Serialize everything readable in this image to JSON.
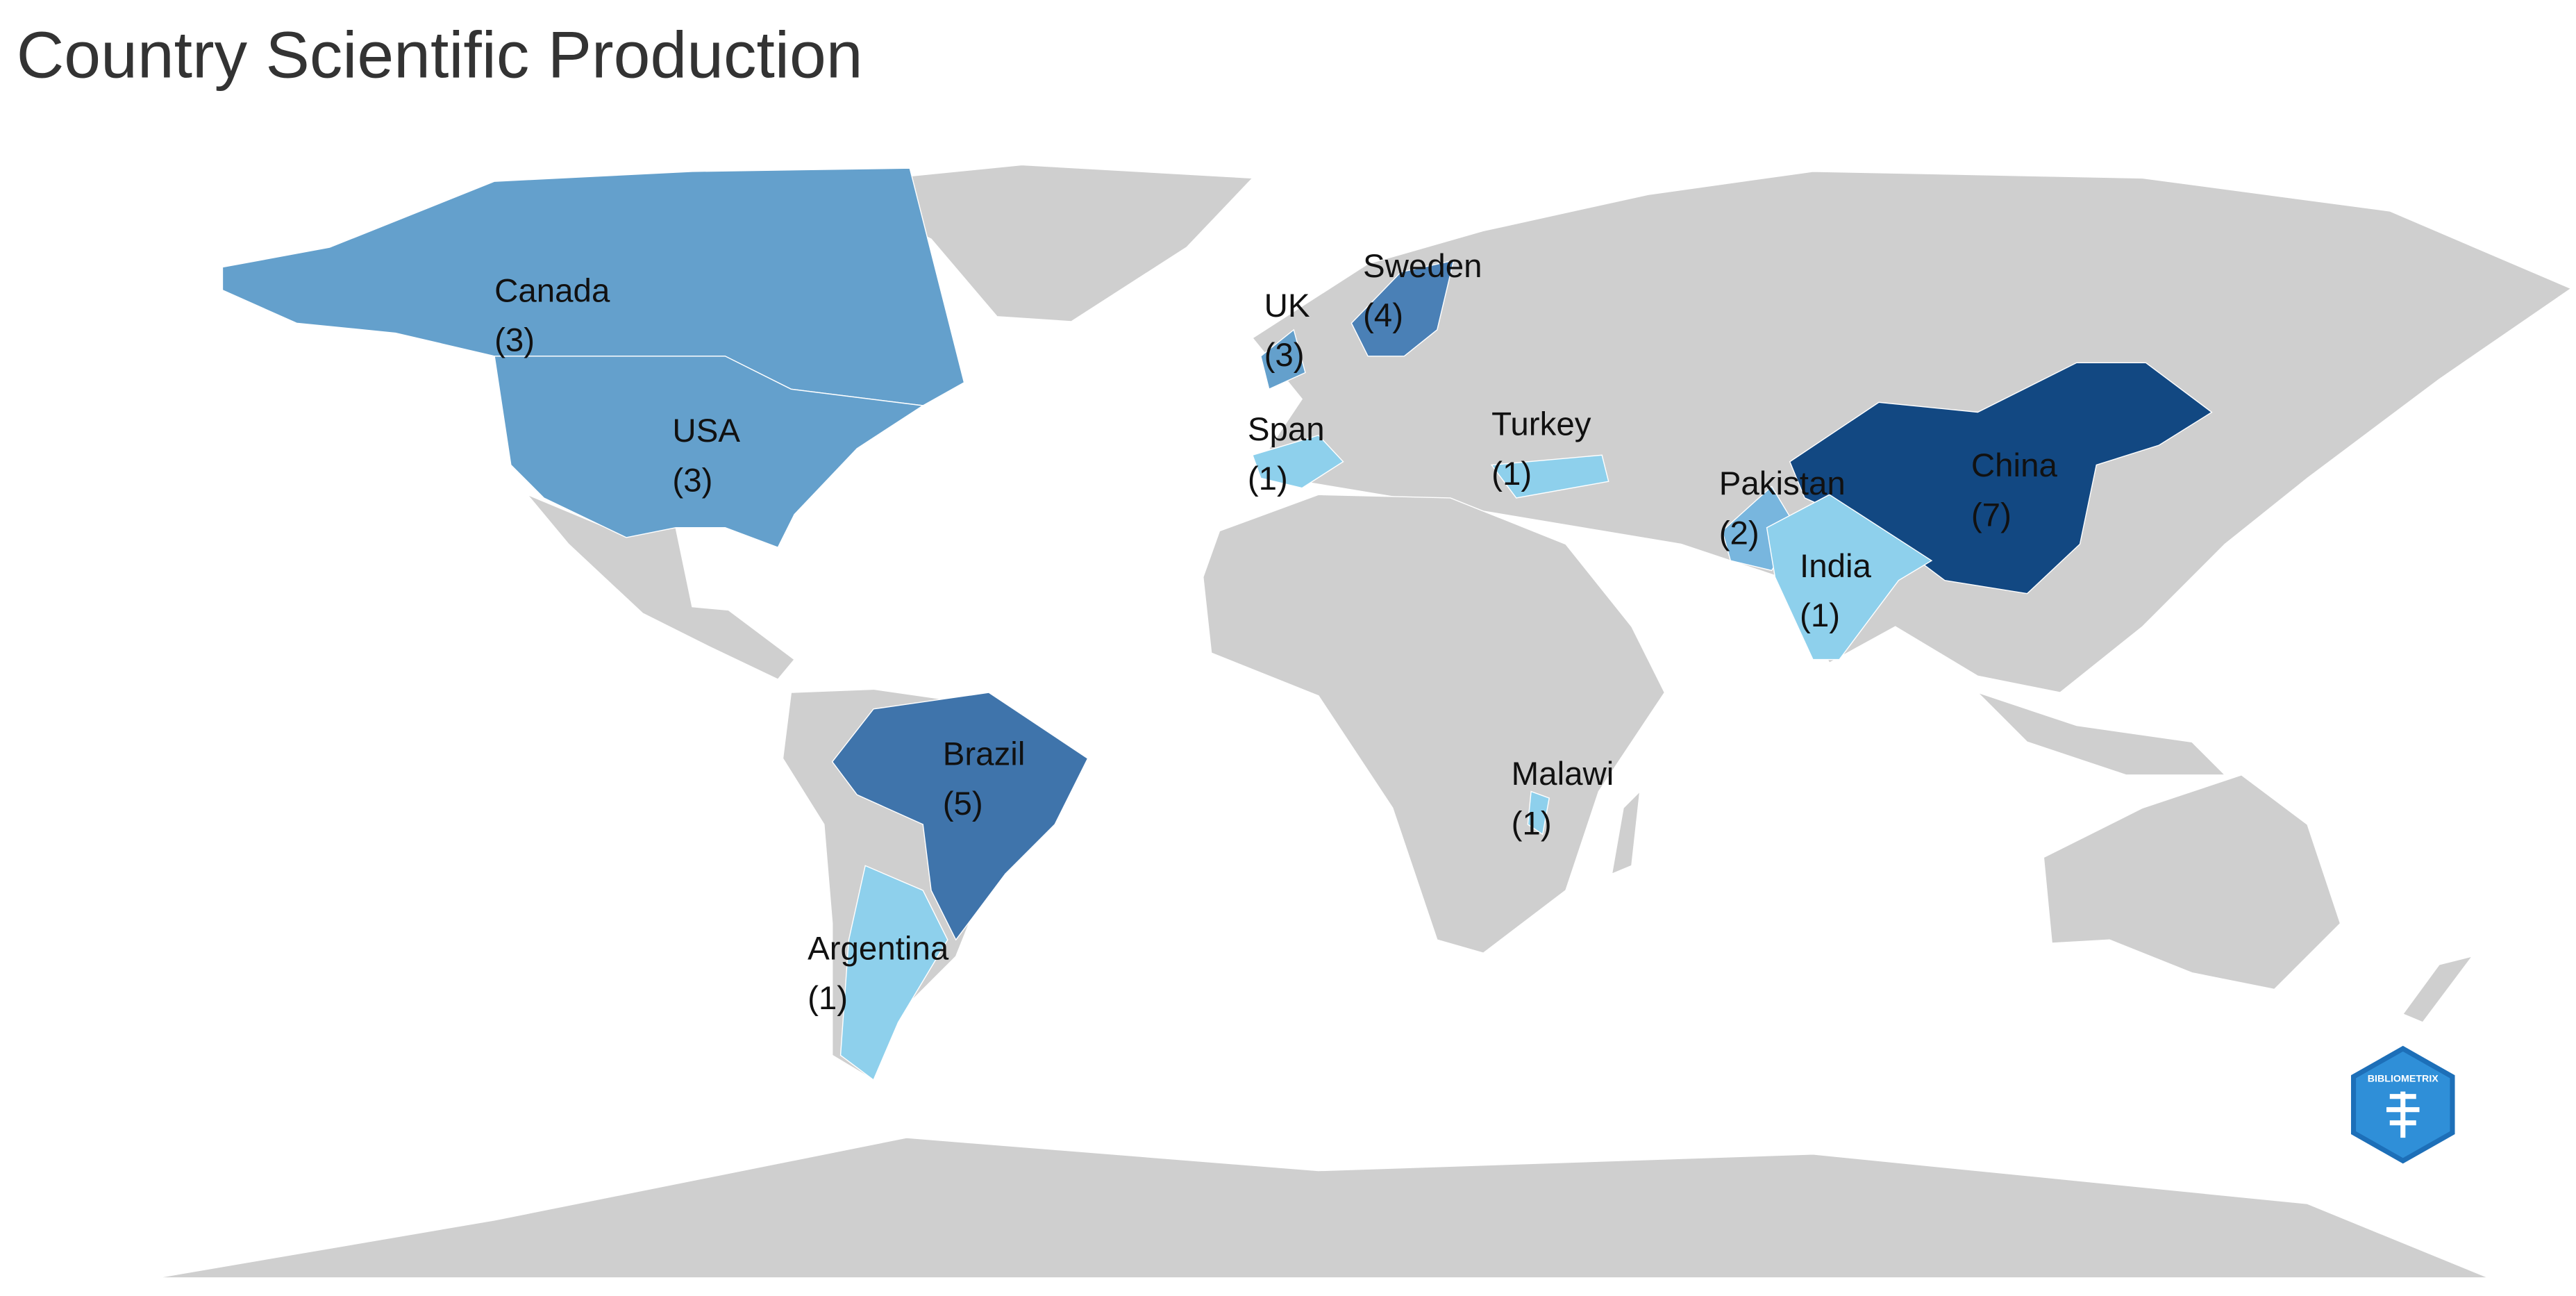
{
  "title": "Country Scientific Production",
  "logo": "BIBLIOMETRIX",
  "countries": [
    {
      "name": "Canada",
      "value": 3,
      "value_label": "(3)",
      "color": "#64a0cc"
    },
    {
      "name": "USA",
      "value": 3,
      "value_label": "(3)",
      "color": "#64a0cc"
    },
    {
      "name": "UK",
      "value": 3,
      "value_label": "(3)",
      "color": "#64a0cc"
    },
    {
      "name": "Sweden",
      "value": 4,
      "value_label": "(4)",
      "color": "#4a80b6"
    },
    {
      "name": "Span",
      "value": 1,
      "value_label": "(1)",
      "color": "#8ed0ec"
    },
    {
      "name": "Turkey",
      "value": 1,
      "value_label": "(1)",
      "color": "#8ed0ec"
    },
    {
      "name": "Pakistan",
      "value": 2,
      "value_label": "(2)",
      "color": "#78b6de"
    },
    {
      "name": "China",
      "value": 7,
      "value_label": "(7)",
      "color": "#124882"
    },
    {
      "name": "India",
      "value": 1,
      "value_label": "(1)",
      "color": "#8ed0ec"
    },
    {
      "name": "Brazil",
      "value": 5,
      "value_label": "(5)",
      "color": "#3f74ab"
    },
    {
      "name": "Malawi",
      "value": 1,
      "value_label": "(1)",
      "color": "#8ed0ec"
    },
    {
      "name": "Argentina",
      "value": 1,
      "value_label": "(1)",
      "color": "#8ed0ec"
    }
  ]
}
